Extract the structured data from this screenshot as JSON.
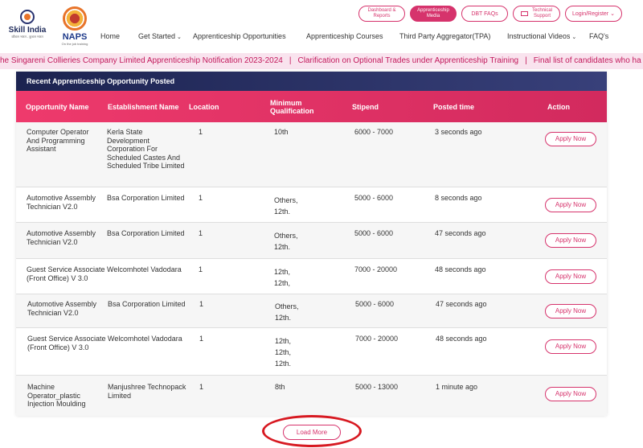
{
  "header": {
    "skill_india": {
      "title": "Skill India",
      "tagline": "कौशल भारत - कुशल भारत"
    },
    "naps": {
      "title": "NAPS",
      "tagline": "On the job training"
    },
    "top_buttons": {
      "dashboard": [
        "Dashboard &",
        "Reports"
      ],
      "media": [
        "Apprenticeship",
        "Media"
      ],
      "dbt": "DBT FAQs",
      "tech_support": [
        "Technical",
        "Support"
      ],
      "login": "Login/Register"
    },
    "nav": [
      {
        "label": "Home"
      },
      {
        "label": "Get Started",
        "chev": "⌄"
      },
      {
        "label": "Apprenticeship Opportunities"
      },
      {
        "label": "Apprenticeship Courses"
      },
      {
        "label": "Third Party Aggregator(TPA)"
      },
      {
        "label": "Instructional Videos",
        "chev": "⌄"
      },
      {
        "label": "FAQ's"
      }
    ]
  },
  "ticker": [
    "he Singareni Collieries Company Limited Apprenticeship Notification 2023-2024",
    "Clarification on Optional Trades under Apprenticeship Training",
    "Final list of candidates who ha"
  ],
  "section": {
    "title": "Recent Apprenticeship Opportunity Posted",
    "columns": [
      "Opportunity Name",
      "Establishment Name",
      "Location",
      "Minimum Qualification",
      "Stipend",
      "Posted time",
      "Action"
    ]
  },
  "rows": [
    {
      "name": "Computer Operator And Programming Assistant",
      "establishment": "Kerla State Development Corporation For Scheduled Castes And Scheduled Tribe Limited",
      "location": "1",
      "qualification": [
        "10th"
      ],
      "stipend": "6000 - 7000",
      "posted": "3 seconds ago",
      "action": "Apply Now"
    },
    {
      "name": "Automotive Assembly Technician V2.0",
      "establishment": "Bsa Corporation Limited",
      "location": "1",
      "qualification": [
        "Others,",
        "12th."
      ],
      "stipend": "5000 - 6000",
      "posted": "8 seconds ago",
      "action": "Apply Now"
    },
    {
      "name": "Automotive Assembly Technician V2.0",
      "establishment": "Bsa Corporation Limited",
      "location": "1",
      "qualification": [
        "Others,",
        "12th."
      ],
      "stipend": "5000 - 6000",
      "posted": "47 seconds ago",
      "action": "Apply Now"
    },
    {
      "name": "Guest Service Associate (Front Office) V 3.0",
      "establishment": "Welcomhotel Vadodara",
      "location": "1",
      "qualification": [
        "12th,",
        "12th,"
      ],
      "stipend": "7000 - 20000",
      "posted": "48 seconds ago",
      "action": "Apply Now"
    },
    {
      "name": "Automotive Assembly Technician V2.0",
      "establishment": "Bsa Corporation Limited",
      "location": "1",
      "qualification": [
        "Others,",
        "12th."
      ],
      "stipend": "5000 - 6000",
      "posted": "47 seconds ago",
      "action": "Apply Now"
    },
    {
      "name": "Guest Service Associate (Front Office) V 3.0",
      "establishment": "Welcomhotel Vadodara",
      "location": "1",
      "qualification": [
        "12th,",
        "12th,",
        "12th."
      ],
      "stipend": "7000 - 20000",
      "posted": "48 seconds ago",
      "action": "Apply Now"
    },
    {
      "name": "Machine Operator_plastic Injection Moulding",
      "establishment": "Manjushree Technopack Limited",
      "location": "1",
      "qualification": [
        "8th"
      ],
      "stipend": "5000 - 13000",
      "posted": "1 minute ago",
      "action": "Apply Now"
    }
  ],
  "load_more": "Load More",
  "colors": {
    "accent": "#d6336c",
    "header_dark": "#1c2350",
    "ticker_bg": "#f9e3ee",
    "highlight_circle": "#d71921"
  }
}
